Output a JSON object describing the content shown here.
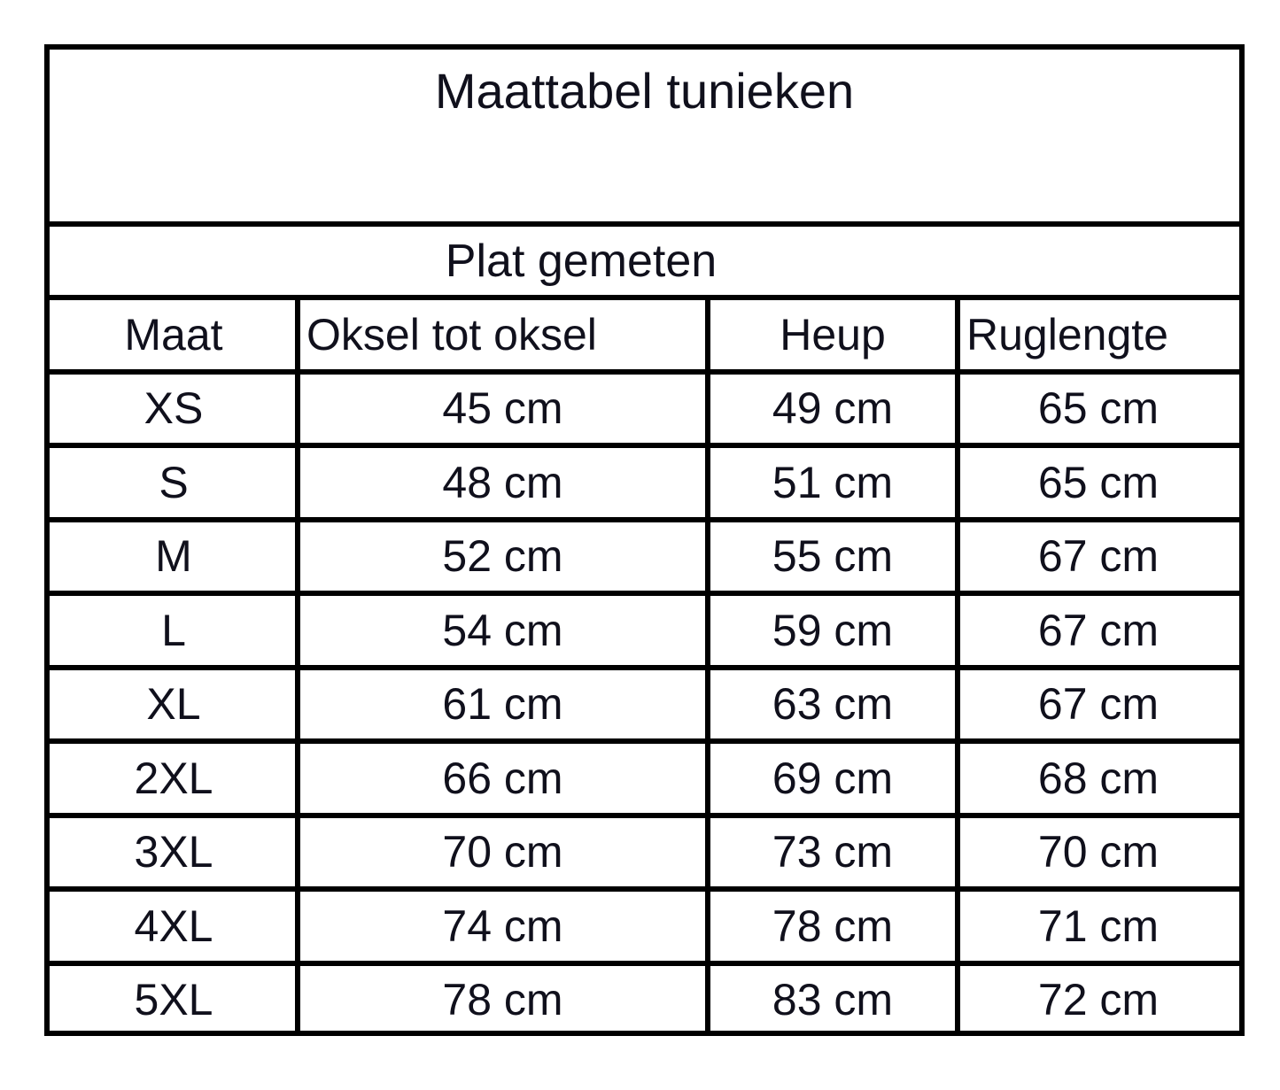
{
  "title": "Maattabel tunieken",
  "subtitle": "Plat gemeten",
  "headers": [
    "Maat",
    "Oksel tot oksel",
    "Heup",
    "Ruglengte"
  ],
  "rows": [
    [
      "XS",
      "45 cm",
      "49 cm",
      "65 cm"
    ],
    [
      "S",
      "48 cm",
      "51 cm",
      "65 cm"
    ],
    [
      "M",
      "52 cm",
      "55 cm",
      "67 cm"
    ],
    [
      "L",
      "54 cm",
      "59 cm",
      "67 cm"
    ],
    [
      "XL",
      "61 cm",
      "63 cm",
      "67 cm"
    ],
    [
      "2XL",
      "66 cm",
      "69 cm",
      "68 cm"
    ],
    [
      "3XL",
      "70 cm",
      "73 cm",
      "70 cm"
    ],
    [
      "4XL",
      "74 cm",
      "78 cm",
      "71 cm"
    ],
    [
      "5XL",
      "78 cm",
      "83 cm",
      "72 cm"
    ]
  ]
}
